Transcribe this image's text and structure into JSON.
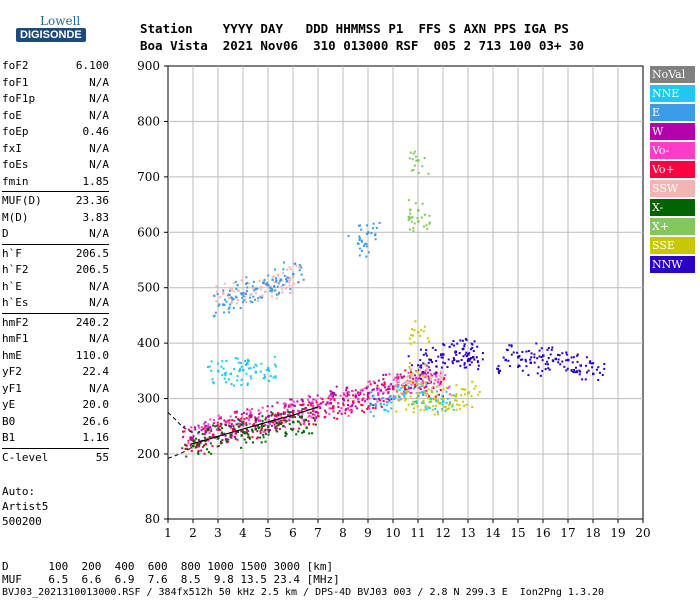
{
  "logo": {
    "top": "Lowell",
    "bottom": "DIGISONDE"
  },
  "header": {
    "row1": "Station    YYYY DAY   DDD HHMMSS P1  FFS S AXN PPS IGA PS",
    "row2": "Boa Vista  2021 Nov06  310 013000 RSF  005 2 713 100 03+ 30"
  },
  "params": [
    [
      {
        "name": "foF2",
        "value": "6.100"
      },
      {
        "name": "foF1",
        "value": "N/A"
      },
      {
        "name": "foF1p",
        "value": "N/A"
      },
      {
        "name": "foE",
        "value": "N/A"
      },
      {
        "name": "foEp",
        "value": "0.46"
      },
      {
        "name": "fxI",
        "value": "N/A"
      },
      {
        "name": "foEs",
        "value": "N/A"
      },
      {
        "name": "fmin",
        "value": "1.85"
      }
    ],
    [
      {
        "name": "MUF(D)",
        "value": "23.36"
      },
      {
        "name": "M(D)",
        "value": "3.83"
      },
      {
        "name": "D",
        "value": "N/A"
      }
    ],
    [
      {
        "name": "h`F",
        "value": "206.5"
      },
      {
        "name": "h`F2",
        "value": "206.5"
      },
      {
        "name": "h`E",
        "value": "N/A"
      },
      {
        "name": "h`Es",
        "value": "N/A"
      }
    ],
    [
      {
        "name": "hmF2",
        "value": "240.2"
      },
      {
        "name": "hmF1",
        "value": "N/A"
      },
      {
        "name": "hmE",
        "value": "110.0"
      },
      {
        "name": "yF2",
        "value": "22.4"
      },
      {
        "name": "yF1",
        "value": "N/A"
      },
      {
        "name": "yE",
        "value": "20.0"
      },
      {
        "name": "B0",
        "value": "26.6"
      },
      {
        "name": "B1",
        "value": "1.16"
      }
    ],
    [
      {
        "name": "C-level",
        "value": "55"
      }
    ]
  ],
  "auto": {
    "line1": "Auto:",
    "line2": "Artist5",
    "line3": "500200"
  },
  "legend": [
    {
      "label": "NoVal",
      "color": "#808080"
    },
    {
      "label": "NNE",
      "color": "#1ec8f0"
    },
    {
      "label": "E",
      "color": "#3c9be6"
    },
    {
      "label": "W",
      "color": "#b400aa"
    },
    {
      "label": "Vo-",
      "color": "#ff3cc8"
    },
    {
      "label": "Vo+",
      "color": "#ff0040"
    },
    {
      "label": "SSW",
      "color": "#f5b4b4"
    },
    {
      "label": "X-",
      "color": "#006400"
    },
    {
      "label": "X+",
      "color": "#82c85a"
    },
    {
      "label": "SSE",
      "color": "#c8c800"
    },
    {
      "label": "NNW",
      "color": "#2800c8"
    }
  ],
  "chart_data": {
    "type": "scatter",
    "x_ticks": [
      "1",
      "2",
      "3",
      "4",
      "5",
      "6",
      "7",
      "8",
      "9",
      "10",
      "11",
      "12",
      "13",
      "14",
      "15",
      "16",
      "17",
      "18",
      "19",
      "20"
    ],
    "y_ticks": [
      "80",
      "200",
      "300",
      "400",
      "500",
      "600",
      "700",
      "800",
      "900"
    ],
    "xlim": [
      1,
      20
    ],
    "ylim": [
      80,
      900
    ],
    "grid": true,
    "traces": [
      {
        "name": "W",
        "color": "#b400aa",
        "x": [
          1.9,
          2.5,
          3.0,
          3.5,
          4.0,
          4.5,
          5.0,
          5.5,
          6.0,
          6.5,
          7.0,
          7.5,
          8.0,
          8.5,
          9.0,
          9.5,
          10.0,
          10.5,
          11.0,
          11.5
        ],
        "y": [
          230,
          240,
          245,
          250,
          255,
          262,
          268,
          272,
          278,
          283,
          288,
          292,
          300,
          305,
          310,
          315,
          322,
          330,
          335,
          330
        ]
      },
      {
        "name": "Vo+",
        "color": "#ff0040",
        "x": [
          2.0,
          2.8,
          3.6,
          4.4,
          5.2,
          6.0,
          6.8,
          7.6,
          8.4,
          9.2,
          10.0,
          10.8,
          11.6
        ],
        "y": [
          225,
          235,
          245,
          252,
          258,
          268,
          278,
          286,
          295,
          305,
          318,
          330,
          320
        ]
      },
      {
        "name": "Vo-",
        "color": "#ff3cc8",
        "x": [
          2.2,
          3.0,
          3.8,
          4.6,
          5.4,
          6.2,
          7.0,
          7.8,
          8.6,
          9.4,
          10.2,
          11.0,
          11.8
        ],
        "y": [
          238,
          248,
          255,
          262,
          270,
          278,
          285,
          292,
          300,
          310,
          325,
          335,
          330
        ]
      },
      {
        "name": "X-",
        "color": "#006400",
        "x": [
          2.0,
          2.5,
          3.0,
          3.5,
          4.0,
          4.5,
          5.0,
          5.5,
          6.0,
          6.5
        ],
        "y": [
          215,
          225,
          230,
          235,
          240,
          245,
          250,
          255,
          258,
          262
        ]
      },
      {
        "name": "NNE",
        "color": "#1ec8f0",
        "x": [
          3.0,
          3.5,
          4.0,
          4.5,
          5.0,
          9.5,
          10.0,
          10.5,
          11.0,
          11.5,
          12.0
        ],
        "y": [
          350,
          345,
          352,
          348,
          355,
          290,
          300,
          310,
          305,
          300,
          295
        ]
      },
      {
        "name": "SSE",
        "color": "#c8c800",
        "x": [
          10.5,
          11.0,
          11.5,
          12.0,
          12.5,
          13.0,
          11.0,
          11.0
        ],
        "y": [
          300,
          310,
          295,
          300,
          305,
          310,
          420,
          350
        ]
      },
      {
        "name": "NNW",
        "color": "#2800c8",
        "x": [
          11.0,
          11.5,
          12.0,
          12.5,
          12.8,
          13.0,
          13.2,
          14.5,
          15.0,
          15.5,
          16.0,
          16.5,
          17.0,
          17.5,
          18.0
        ],
        "y": [
          360,
          370,
          380,
          385,
          390,
          380,
          375,
          370,
          375,
          365,
          378,
          372,
          370,
          360,
          345
        ]
      },
      {
        "name": "SSW",
        "color": "#f5b4b4",
        "x": [
          3.2,
          3.8,
          4.5,
          5.0,
          5.5,
          6.0,
          10.5,
          11.0,
          11.5
        ],
        "y": [
          490,
          495,
          500,
          505,
          515,
          520,
          330,
          340,
          335
        ]
      },
      {
        "name": "E",
        "color": "#3c9be6",
        "x": [
          3.2,
          3.6,
          4.0,
          4.5,
          5.0,
          5.5,
          6.0,
          8.6,
          9.0
        ],
        "y": [
          470,
          480,
          490,
          498,
          505,
          515,
          525,
          580,
          600
        ]
      },
      {
        "name": "X+",
        "color": "#82c85a",
        "x": [
          11.0,
          11.0,
          11.0
        ],
        "y": [
          730,
          640,
          620
        ]
      }
    ],
    "trace_lines": [
      {
        "name": "fitted-trace",
        "x": [
          1.9,
          2.5,
          3.0,
          4.0,
          5.0,
          6.0,
          7.0
        ],
        "y": [
          218,
          225,
          232,
          245,
          258,
          270,
          285
        ]
      },
      {
        "name": "dashed-profile-upper",
        "x": [
          1.0,
          1.3,
          1.6,
          2.0
        ],
        "y": [
          275,
          262,
          248,
          238
        ]
      },
      {
        "name": "dashed-profile-lower",
        "x": [
          1.0,
          1.3,
          1.6,
          1.9
        ],
        "y": [
          192,
          197,
          203,
          210
        ]
      }
    ]
  },
  "footer": {
    "d_row": "D      100  200  400  600  800 1000 1500 3000 [km]",
    "muf_row": "MUF    6.5  6.6  6.9  7.6  8.5  9.8 13.5 23.4 [MHz]",
    "info": "BVJ03_2021310013000.RSF / 384fx512h 50 kHz 2.5 km / DPS-4D BVJ03 003 / 2.8 N 299.3 E  Ion2Png 1.3.20"
  }
}
